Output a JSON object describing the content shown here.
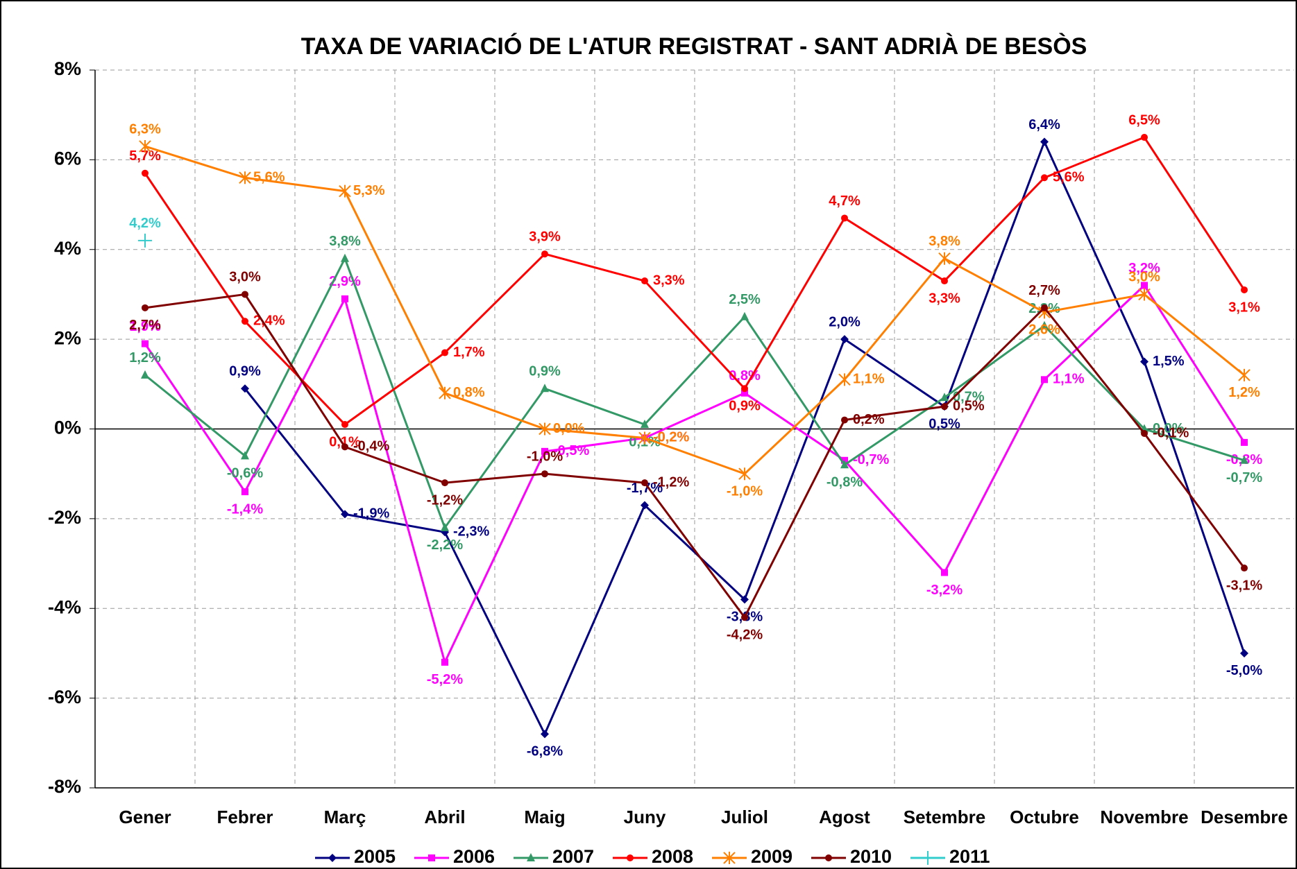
{
  "chart_data": {
    "type": "line",
    "title": "TAXA DE VARIACIÓ DE L'ATUR REGISTRAT - SANT ADRIÀ DE BESÒS",
    "categories": [
      "Gener",
      "Febrer",
      "Març",
      "Abril",
      "Maig",
      "Juny",
      "Juliol",
      "Agost",
      "Setembre",
      "Octubre",
      "Novembre",
      "Desembre"
    ],
    "ylim": [
      -8,
      8
    ],
    "yticks": [
      {
        "value": -8,
        "label": "-8%"
      },
      {
        "value": -6,
        "label": "-6%"
      },
      {
        "value": -4,
        "label": "-4%"
      },
      {
        "value": -2,
        "label": "-2%"
      },
      {
        "value": 0,
        "label": "0%"
      },
      {
        "value": 2,
        "label": "2%"
      },
      {
        "value": 4,
        "label": "4%"
      },
      {
        "value": 6,
        "label": "6%"
      },
      {
        "value": 8,
        "label": "8%"
      }
    ],
    "grid": true,
    "legend": "bottom",
    "series": [
      {
        "name": "2005",
        "color": "#000080",
        "marker": "diamond",
        "values": [
          null,
          0.9,
          -1.9,
          -2.3,
          -6.8,
          -1.7,
          -3.8,
          2.0,
          0.5,
          6.4,
          1.5,
          -5.0
        ],
        "value_labels": [
          null,
          "0,9%",
          "-1,9%",
          "-2,3%",
          "-6,8%",
          "-1,7%",
          "-3,8%",
          "2,0%",
          "0,5%",
          "6,4%",
          "1,5%",
          "-5,0%"
        ]
      },
      {
        "name": "2006",
        "color": "#ff00ff",
        "marker": "square",
        "values": [
          1.9,
          -1.4,
          2.9,
          -5.2,
          -0.5,
          -0.2,
          0.8,
          -0.7,
          -3.2,
          1.1,
          3.2,
          -0.3
        ],
        "value_labels": [
          "1,9%",
          "-1,4%",
          "2,9%",
          "-5,2%",
          "-0,5%",
          "-0,2%",
          "0,8%",
          "-0,7%",
          "-3,2%",
          "1,1%",
          "3,2%",
          "-0,3%"
        ]
      },
      {
        "name": "2007",
        "color": "#339966",
        "marker": "triangle",
        "values": [
          1.2,
          -0.6,
          3.8,
          -2.2,
          0.9,
          0.1,
          2.5,
          -0.8,
          0.7,
          2.3,
          0.0,
          -0.7
        ],
        "value_labels": [
          "1,2%",
          "-0,6%",
          "3,8%",
          "-2,2%",
          "0,9%",
          "0,1%",
          "2,5%",
          "-0,8%",
          "0,7%",
          "2,3%",
          "0,0%",
          "-0,7%"
        ]
      },
      {
        "name": "2008",
        "color": "#ff0000",
        "marker": "circle",
        "values": [
          5.7,
          2.4,
          0.1,
          1.7,
          3.9,
          3.3,
          0.9,
          4.7,
          3.3,
          5.6,
          6.5,
          3.1
        ],
        "value_labels": [
          "5,7%",
          "2,4%",
          "0,1%",
          "1,7%",
          "3,9%",
          "3,3%",
          "0,9%",
          "4,7%",
          "3,3%",
          "5,6%",
          "6,5%",
          "3,1%"
        ]
      },
      {
        "name": "2009",
        "color": "#ff7f00",
        "marker": "asterisk",
        "values": [
          6.3,
          5.6,
          5.3,
          0.8,
          0.0,
          -0.2,
          -1.0,
          1.1,
          3.8,
          2.6,
          3.0,
          1.2
        ],
        "value_labels": [
          "6,3%",
          "5,6%",
          "5,3%",
          "0,8%",
          "0,0%",
          "-0,2%",
          "-1,0%",
          "1,1%",
          "3,8%",
          "2,6%",
          "3,0%",
          "1,2%"
        ]
      },
      {
        "name": "2010",
        "color": "#800000",
        "marker": "circle",
        "values": [
          2.7,
          3.0,
          -0.4,
          -1.2,
          -1.0,
          -1.2,
          -4.2,
          0.2,
          0.5,
          2.7,
          -0.1,
          -3.1
        ],
        "value_labels": [
          "2,7%",
          "3,0%",
          "-0,4%",
          "-1,2%",
          "-1,0%",
          "-1,2%",
          "-4,2%",
          "0,2%",
          "0,5%",
          "2,7%",
          "-0,1%",
          "-3,1%"
        ]
      },
      {
        "name": "2011",
        "color": "#33cccc",
        "marker": "plus",
        "values": [
          4.2,
          null,
          null,
          null,
          null,
          null,
          null,
          null,
          null,
          null,
          null,
          null
        ],
        "value_labels": [
          "4,2%",
          null,
          null,
          null,
          null,
          null,
          null,
          null,
          null,
          null,
          null,
          null
        ]
      }
    ]
  }
}
